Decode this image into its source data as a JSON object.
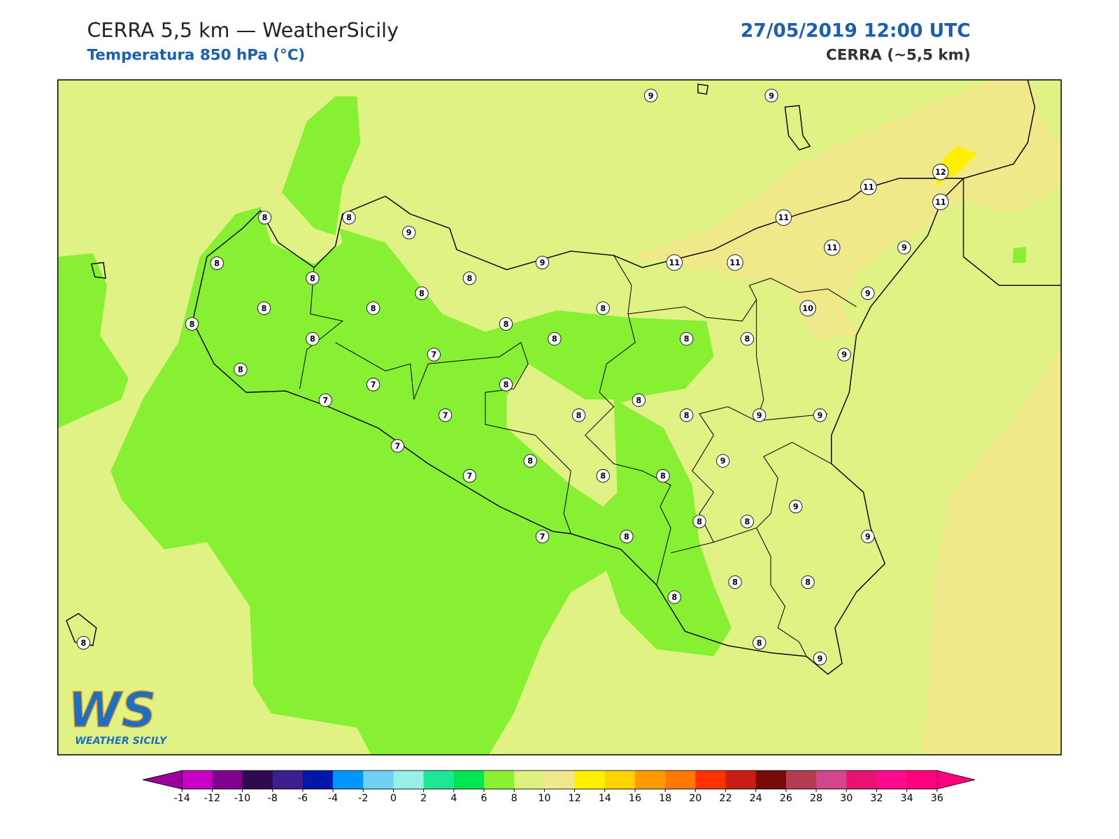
{
  "header": {
    "title": "CERRA 5,5 km — WeatherSicily",
    "subtitle": "Temperatura 850 hPa (°C)",
    "datetime": "27/05/2019 12:00 UTC",
    "model": "CERRA (~5,5 km)"
  },
  "stations": [
    9,
    9,
    12,
    11,
    11,
    8,
    8,
    9,
    11,
    8,
    8,
    8,
    9,
    11,
    11,
    11,
    9,
    8,
    9,
    8,
    8,
    8,
    10,
    8,
    8,
    8,
    8,
    8,
    8,
    7,
    9,
    8,
    7,
    8,
    7,
    8,
    7,
    8,
    8,
    9,
    9,
    7,
    9,
    8,
    7,
    8,
    8,
    9,
    8,
    8,
    7,
    8,
    9,
    8,
    8,
    8,
    8,
    9,
    8
  ],
  "colorbar": {
    "ticks": [
      -14,
      -12,
      -10,
      -8,
      -6,
      -4,
      -2,
      0,
      2,
      4,
      6,
      8,
      10,
      12,
      14,
      16,
      18,
      20,
      22,
      24,
      26,
      28,
      30,
      32,
      34,
      36
    ],
    "colors": [
      "#c800c8",
      "#80008f",
      "#2e0a50",
      "#3c1e8c",
      "#0018aa",
      "#0096ff",
      "#6ed2f5",
      "#96f0e6",
      "#1ee696",
      "#00e650",
      "#8af032",
      "#e0f080",
      "#f0e68c",
      "#fff000",
      "#ffd200",
      "#ff9b00",
      "#ff7800",
      "#ff3200",
      "#c81e14",
      "#780a0a",
      "#b43c50",
      "#d2468c",
      "#e6146e",
      "#ff0a8c",
      "#ff007f"
    ],
    "under_color": "#9b009b",
    "over_color": "#ff007f"
  },
  "logo": {
    "mark": "WS",
    "text": "WEATHER SICILY"
  }
}
